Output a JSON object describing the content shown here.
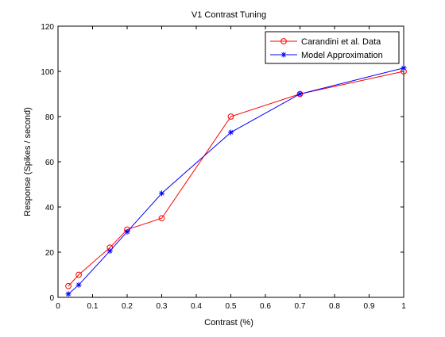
{
  "chart_data": {
    "type": "line",
    "title": "V1 Contrast Tuning",
    "xlabel": "Contrast (%)",
    "ylabel": "Response (Spikes / second)",
    "xlim": [
      0,
      1
    ],
    "ylim": [
      0,
      120
    ],
    "xticks": [
      "0",
      "0.1",
      "0.2",
      "0.3",
      "0.4",
      "0.5",
      "0.6",
      "0.7",
      "0.8",
      "0.9",
      "1"
    ],
    "yticks": [
      "0",
      "20",
      "40",
      "60",
      "80",
      "100",
      "120"
    ],
    "grid": false,
    "legend": "top-right",
    "series": [
      {
        "name": "Carandini et al. Data",
        "color": "#ff0000",
        "marker": "circle",
        "x": [
          0.03,
          0.06,
          0.15,
          0.2,
          0.3,
          0.5,
          0.7,
          1.0
        ],
        "y": [
          5,
          10,
          22,
          30,
          35,
          80,
          90,
          100
        ]
      },
      {
        "name": "Model Approximation",
        "color": "#0000ff",
        "marker": "star",
        "x": [
          0.03,
          0.06,
          0.15,
          0.2,
          0.3,
          0.5,
          0.7,
          1.0
        ],
        "y": [
          1.5,
          5.5,
          20.5,
          29,
          46,
          73,
          90,
          101.5
        ]
      }
    ]
  }
}
